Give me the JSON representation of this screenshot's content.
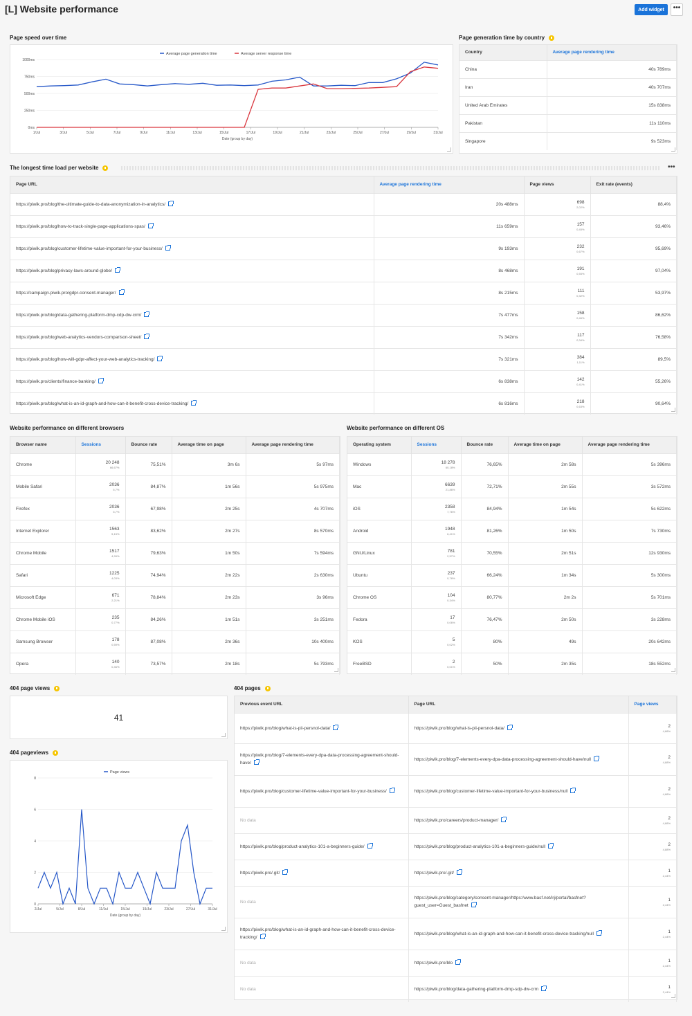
{
  "header": {
    "title": "[L] Website performance",
    "add_widget": "Add widget",
    "more": "•••"
  },
  "speed": {
    "title": "Page speed over time",
    "chart_data": {
      "type": "line",
      "xlabel": "Date (group by day)",
      "x_ticks": [
        "1/Jul",
        "3/Jul",
        "5/Jul",
        "7/Jul",
        "9/Jul",
        "11/Jul",
        "13/Jul",
        "15/Jul",
        "17/Jul",
        "19/Jul",
        "21/Jul",
        "23/Jul",
        "25/Jul",
        "27/Jul",
        "29/Jul",
        "31/Jul"
      ],
      "y_ticks": [
        "0ms",
        "250ms",
        "500ms",
        "750ms",
        "1000ms"
      ],
      "ylim": [
        0,
        1000
      ],
      "series": [
        {
          "name": "Average page generation time",
          "color": "#2557c8",
          "values": [
            600,
            610,
            615,
            625,
            670,
            710,
            640,
            630,
            610,
            630,
            645,
            635,
            650,
            620,
            625,
            615,
            625,
            680,
            700,
            740,
            610,
            610,
            620,
            615,
            660,
            660,
            715,
            800,
            960,
            920
          ]
        },
        {
          "name": "Average server response time",
          "color": "#d9363e",
          "values": [
            0,
            0,
            0,
            0,
            0,
            0,
            0,
            0,
            0,
            0,
            0,
            0,
            0,
            0,
            0,
            0,
            560,
            580,
            580,
            610,
            640,
            570,
            570,
            575,
            580,
            590,
            600,
            820,
            890,
            870
          ]
        }
      ]
    }
  },
  "country": {
    "title": "Page generation time by country",
    "cols": [
      "Country",
      "Average page rendering time"
    ],
    "rows": [
      [
        "China",
        "40s 789ms"
      ],
      [
        "Iran",
        "40s 707ms"
      ],
      [
        "United Arab Emirates",
        "15s 838ms"
      ],
      [
        "Pakistan",
        "11s 110ms"
      ],
      [
        "Singapore",
        "9s 523ms"
      ]
    ]
  },
  "longest": {
    "title": "The longest time load per website",
    "cols": [
      "Page URL",
      "Average page rendering time",
      "Page views",
      "Exit rate (events)"
    ],
    "rows": [
      [
        "https://piwik.pro/blog/the-ultimate-guide-to-data-anonymization-in-analytics/",
        "20s 488ms",
        "698",
        "2,02%",
        "88,4%"
      ],
      [
        "https://piwik.pro/blog/how-to-track-single-page-applications-spas/",
        "11s 659ms",
        "157",
        "0,45%",
        "93,46%"
      ],
      [
        "https://piwik.pro/blog/customer-lifetime-value-important-for-your-business/",
        "9s 193ms",
        "232",
        "0,67%",
        "95,69%"
      ],
      [
        "https://piwik.pro/blog/privacy-laws-around-globe/",
        "8s 468ms",
        "191",
        "0,55%",
        "97,04%"
      ],
      [
        "https://campaign.piwik.pro/gdpr-consent-manager/",
        "8s 215ms",
        "111",
        "0,32%",
        "53,97%"
      ],
      [
        "https://piwik.pro/blog/data-gathering-platform-dmp-cdp-dw-crm/",
        "7s 477ms",
        "158",
        "0,46%",
        "86,62%"
      ],
      [
        "https://piwik.pro/blog/web-analytics-vendors-comparison-sheet/",
        "7s 342ms",
        "117",
        "0,34%",
        "76,58%"
      ],
      [
        "https://piwik.pro/blog/how-will-gdpr-affect-your-web-analytics-tracking/",
        "7s 321ms",
        "384",
        "1,11%",
        "89,5%"
      ],
      [
        "https://piwik.pro/clients/finance-banking/",
        "6s 838ms",
        "142",
        "0,41%",
        "55,26%"
      ],
      [
        "https://piwik.pro/blog/what-is-an-id-graph-and-how-can-it-benefit-cross-device-tracking/",
        "6s 816ms",
        "218",
        "0,63%",
        "90,64%"
      ]
    ]
  },
  "browsers": {
    "title": "Website performance on different browsers",
    "cols": [
      "Browser name",
      "Sessions",
      "Bounce rate",
      "Average time on page",
      "Average page rendering time"
    ],
    "rows": [
      [
        "Chrome",
        "20 248",
        "66,67%",
        "75,51%",
        "3m 6s",
        "5s 97ms"
      ],
      [
        "Mobile Safari",
        "2036",
        "6,7%",
        "84,87%",
        "1m 56s",
        "5s 975ms"
      ],
      [
        "Firefox",
        "2036",
        "6,7%",
        "67,98%",
        "2m 25s",
        "4s 707ms"
      ],
      [
        "Internet Explorer",
        "1563",
        "5,15%",
        "83,62%",
        "2m 27s",
        "8s 570ms"
      ],
      [
        "Chrome Mobile",
        "1517",
        "4,99%",
        "79,63%",
        "1m 50s",
        "7s 594ms"
      ],
      [
        "Safari",
        "1225",
        "4,03%",
        "74,94%",
        "2m 22s",
        "2s 630ms"
      ],
      [
        "Microsoft Edge",
        "671",
        "2,21%",
        "78,84%",
        "2m 23s",
        "3s 96ms"
      ],
      [
        "Chrome Mobile iOS",
        "235",
        "0,77%",
        "84,26%",
        "1m 51s",
        "3s 251ms"
      ],
      [
        "Samsung Browser",
        "178",
        "0,59%",
        "87,08%",
        "2m 36s",
        "10s 400ms"
      ],
      [
        "Opera",
        "140",
        "0,46%",
        "73,57%",
        "2m 18s",
        "5s 793ms"
      ]
    ]
  },
  "os": {
    "title": "Website performance on different OS",
    "cols": [
      "Operating system",
      "Sessions",
      "Bounce rate",
      "Average time on page",
      "Average page rendering time"
    ],
    "rows": [
      [
        "Windows",
        "18 278",
        "60,18%",
        "76,65%",
        "2m 58s",
        "5s 396ms"
      ],
      [
        "Mac",
        "6639",
        "21,86%",
        "72,71%",
        "2m 55s",
        "3s 572ms"
      ],
      [
        "iOS",
        "2358",
        "7,76%",
        "84,94%",
        "1m 54s",
        "5s 622ms"
      ],
      [
        "Android",
        "1948",
        "6,41%",
        "81,26%",
        "1m 50s",
        "7s 730ms"
      ],
      [
        "GNU/Linux",
        "781",
        "2,57%",
        "70,55%",
        "2m 51s",
        "12s 930ms"
      ],
      [
        "Ubuntu",
        "237",
        "0,78%",
        "66,24%",
        "1m 34s",
        "5s 300ms"
      ],
      [
        "Chrome OS",
        "104",
        "0,34%",
        "80,77%",
        "2m 2s",
        "5s 701ms"
      ],
      [
        "Fedora",
        "17",
        "0,06%",
        "76,47%",
        "2m 50s",
        "3s 228ms"
      ],
      [
        "KOS",
        "5",
        "0,02%",
        "80%",
        "49s",
        "20s 642ms"
      ],
      [
        "FreeBSD",
        "2",
        "0,01%",
        "50%",
        "2m 35s",
        "18s 552ms"
      ]
    ]
  },
  "pv404": {
    "title": "404 page views",
    "value": "41"
  },
  "pv404chart": {
    "title": "404 pageviews",
    "chart_data": {
      "type": "line",
      "xlabel": "Date (group by day)",
      "x_ticks": [
        "2/Jul",
        "5/Jul",
        "8/Jul",
        "11/Jul",
        "15/Jul",
        "19/Jul",
        "23/Jul",
        "27/Jul",
        "31/Jul"
      ],
      "y_ticks": [
        "0",
        "2",
        "4",
        "6",
        "8"
      ],
      "ylim": [
        0,
        8
      ],
      "series": [
        {
          "name": "Page views",
          "color": "#2557c8",
          "values": [
            1,
            2,
            1,
            2,
            0,
            1,
            0,
            6,
            1,
            0,
            1,
            1,
            0,
            2,
            1,
            1,
            2,
            1,
            0,
            2,
            1,
            1,
            1,
            4,
            5,
            2,
            0,
            1,
            1
          ]
        }
      ]
    }
  },
  "pages404": {
    "title": "404 pages",
    "cols": [
      "Previous event URL",
      "Page URL",
      "Page views"
    ],
    "rows": [
      [
        "https://piwik.pro/blog/what-is-pii-persnol-data/",
        "https://piwik.pro/blog/what-is-pii-persnol-data/",
        "2",
        "4,88%"
      ],
      [
        "https://piwik.pro/blog/7-elements-every-dpa-data-processing-agreement-should-have/",
        "https://piwik.pro/blog/7-elements-every-dpa-data-processing-agreement-should-have/null",
        "2",
        "4,88%"
      ],
      [
        "https://piwik.pro/blog/customer-lifetime-value-important-for-your-business/",
        "https://piwik.pro/blog/customer-lifetime-value-important-for-your-business/null",
        "2",
        "4,88%"
      ],
      [
        "No data",
        "https://piwik.pro/careers/product-manager/",
        "2",
        "4,88%"
      ],
      [
        "https://piwik.pro/blog/product-analytics-101-a-beginners-guide/",
        "https://piwik.pro/blog/product-analytics-101-a-beginners-guide/null",
        "2",
        "4,88%"
      ],
      [
        "https://piwik.pro/.git/",
        "https://piwik.pro/.git/",
        "1",
        "2,44%"
      ],
      [
        "No data",
        "https://piwik.pro/blog/category/consent-manager/https:/www.basf.net/irj/portal/basfnet?guest_user=Guest_basfnet",
        "1",
        "2,44%"
      ],
      [
        "https://piwik.pro/blog/what-is-an-id-graph-and-how-can-it-benefit-cross-device-tracking/",
        "https://piwik.pro/blog/what-is-an-id-graph-and-how-can-it-benefit-cross-device-tracking/null",
        "1",
        "2,44%"
      ],
      [
        "No data",
        "https://piwik.pro/blo",
        "1",
        "2,44%"
      ],
      [
        "No data",
        "https://piwik.pro/blog/data-gathering-platform-dmp-sdp-dw-crm",
        "1",
        "2,44%"
      ]
    ]
  }
}
